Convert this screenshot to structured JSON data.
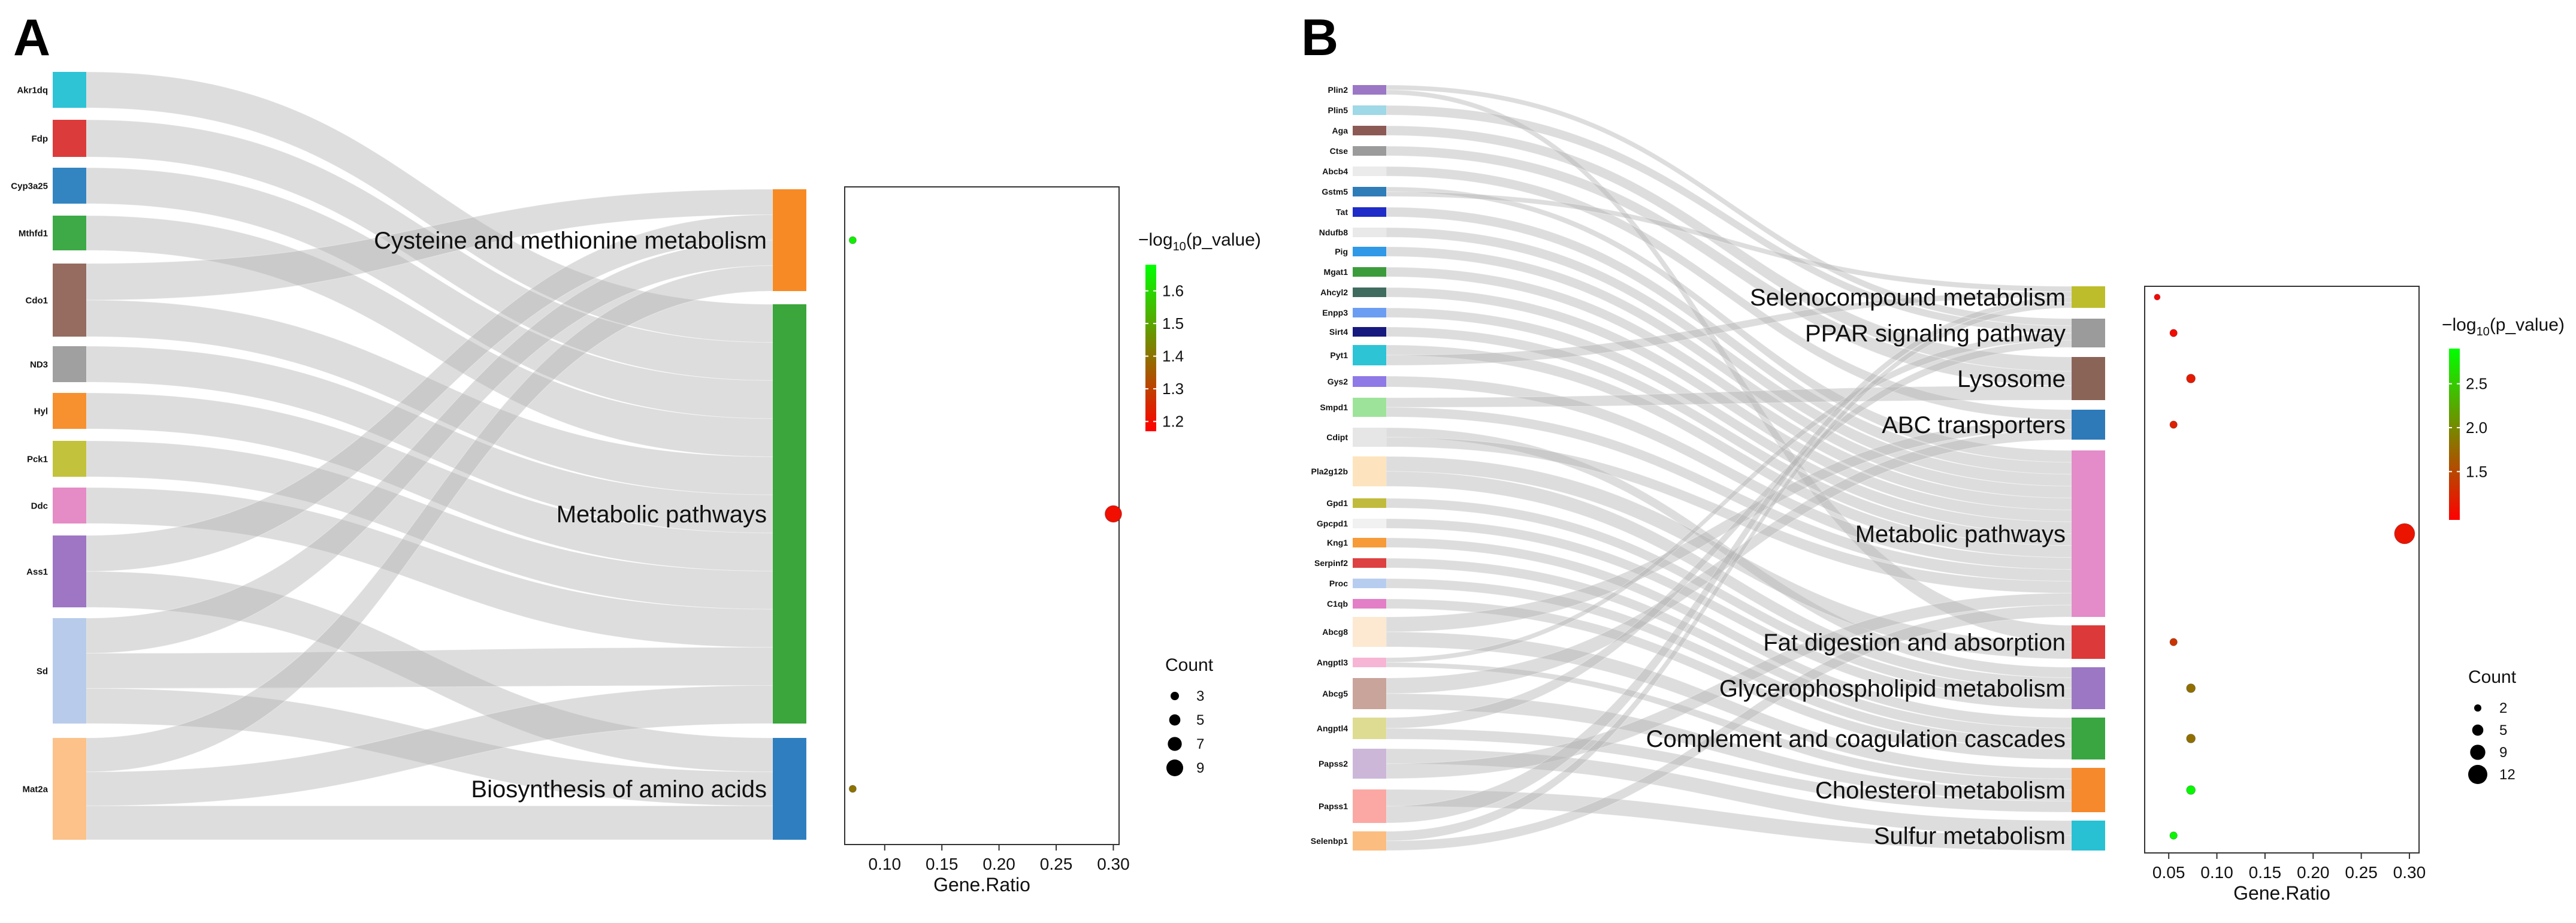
{
  "chart_data": [
    {
      "panel": "A",
      "type": "sankey+scatter",
      "genes": [
        {
          "name": "Akr1dq",
          "color": "#2fc3d6"
        },
        {
          "name": "Fdp",
          "color": "#dc3b3b"
        },
        {
          "name": "Cyp3a25",
          "color": "#3385c1"
        },
        {
          "name": "Mthfd1",
          "color": "#3daa47"
        },
        {
          "name": "Cdo1",
          "color": "#966b60"
        },
        {
          "name": "ND3",
          "color": "#a0a0a0"
        },
        {
          "name": "Hyl",
          "color": "#f7912f"
        },
        {
          "name": "Pck1",
          "color": "#c3c23c"
        },
        {
          "name": "Ddc",
          "color": "#e58bc6"
        },
        {
          "name": "Ass1",
          "color": "#9e76c3"
        },
        {
          "name": "Sd",
          "color": "#b8cbeb"
        },
        {
          "name": "Mat2a",
          "color": "#fcc28a"
        }
      ],
      "pathways": [
        {
          "name": "Cysteine and methionine metabolism",
          "color": "#f78a25"
        },
        {
          "name": "Metabolic pathways",
          "color": "#3aa63b"
        },
        {
          "name": "Biosynthesis of amino acids",
          "color": "#2f7fc0"
        }
      ],
      "points": [
        {
          "pathway": "Cysteine and methionine metabolism",
          "gene_ratio": 0.072,
          "neg_log10_p": 1.65,
          "count": 3
        },
        {
          "pathway": "Metabolic pathways",
          "gene_ratio": 0.3,
          "neg_log10_p": 1.2,
          "count": 9
        },
        {
          "pathway": "Biosynthesis of amino acids",
          "gene_ratio": 0.072,
          "neg_log10_p": 1.4,
          "count": 3
        }
      ],
      "xlabel": "Gene.Ratio",
      "x_ticks": [
        "0.10",
        "0.15",
        "0.20",
        "0.25",
        "0.30"
      ],
      "xlim": [
        0.065,
        0.305
      ],
      "color_legend": {
        "title_prefix": "−log",
        "title_sub": "10",
        "title_suffix": "(p_value)",
        "ticks": [
          "1.6",
          "1.5",
          "1.4",
          "1.3",
          "1.2"
        ],
        "range": [
          1.17,
          1.68
        ],
        "low_color": "#ff0000",
        "high_color": "#00ff00"
      },
      "size_legend": {
        "title": "Count",
        "values": [
          "3",
          "5",
          "7",
          "9"
        ]
      }
    },
    {
      "panel": "B",
      "type": "sankey+scatter",
      "genes": [
        {
          "name": "Plin2",
          "color": "#9b77c6"
        },
        {
          "name": "Plin5",
          "color": "#9fd8e6"
        },
        {
          "name": "Aga",
          "color": "#8c5a55"
        },
        {
          "name": "Ctse",
          "color": "#9b9b9b"
        },
        {
          "name": "Abcb4",
          "color": "#ebebeb"
        },
        {
          "name": "Gstm5",
          "color": "#2e7cb8"
        },
        {
          "name": "Tat",
          "color": "#1f2cc8"
        },
        {
          "name": "Ndufb8",
          "color": "#e9e9e9"
        },
        {
          "name": "Pig",
          "color": "#2f99e8"
        },
        {
          "name": "Mgat1",
          "color": "#3c9c3c"
        },
        {
          "name": "Ahcyl2",
          "color": "#3f6c5e"
        },
        {
          "name": "Enpp3",
          "color": "#6b9df3"
        },
        {
          "name": "Sirt4",
          "color": "#16197e"
        },
        {
          "name": "Pyt1",
          "color": "#2dc4d6"
        },
        {
          "name": "Gys2",
          "color": "#8f79e7"
        },
        {
          "name": "Smpd1",
          "color": "#9ee39a"
        },
        {
          "name": "Cdipt",
          "color": "#e6e6e6"
        },
        {
          "name": "Pla2g12b",
          "color": "#fde4bf"
        },
        {
          "name": "Gpd1",
          "color": "#c1bb3d"
        },
        {
          "name": "Gpcpd1",
          "color": "#f1f1f1"
        },
        {
          "name": "Kng1",
          "color": "#f79a38"
        },
        {
          "name": "Serpinf2",
          "color": "#dd4141"
        },
        {
          "name": "Proc",
          "color": "#b7cdf0"
        },
        {
          "name": "C1qb",
          "color": "#e37fc6"
        },
        {
          "name": "Abcg8",
          "color": "#fde8d1"
        },
        {
          "name": "Angptl3",
          "color": "#f7b5d5"
        },
        {
          "name": "Abcg5",
          "color": "#c9a49b"
        },
        {
          "name": "Angptl4",
          "color": "#dedc93"
        },
        {
          "name": "Papss2",
          "color": "#ccb7d9"
        },
        {
          "name": "Papss1",
          "color": "#fba8a4"
        },
        {
          "name": "Selenbp1",
          "color": "#fcbd80"
        }
      ],
      "pathways": [
        {
          "name": "Selenocompound metabolism",
          "color": "#bdbd2c"
        },
        {
          "name": "PPAR signaling pathway",
          "color": "#9b9b9b"
        },
        {
          "name": "Lysosome",
          "color": "#8b6458"
        },
        {
          "name": "ABC transporters",
          "color": "#2e7ab8"
        },
        {
          "name": "Metabolic pathways",
          "color": "#e48bc9"
        },
        {
          "name": "Fat digestion and absorption",
          "color": "#dc3a3a"
        },
        {
          "name": "Glycerophospholipid metabolism",
          "color": "#9c77c3"
        },
        {
          "name": "Complement and coagulation cascades",
          "color": "#3aa642"
        },
        {
          "name": "Cholesterol metabolism",
          "color": "#f6892b"
        },
        {
          "name": "Sulfur metabolism",
          "color": "#27c1d3"
        }
      ],
      "points": [
        {
          "pathway": "Selenocompound metabolism",
          "gene_ratio": 0.038,
          "neg_log10_p": 1.0,
          "count": 2
        },
        {
          "pathway": "PPAR signaling pathway",
          "gene_ratio": 0.055,
          "neg_log10_p": 1.05,
          "count": 3
        },
        {
          "pathway": "Lysosome",
          "gene_ratio": 0.073,
          "neg_log10_p": 1.15,
          "count": 4
        },
        {
          "pathway": "ABC transporters",
          "gene_ratio": 0.055,
          "neg_log10_p": 1.2,
          "count": 3
        },
        {
          "pathway": "Metabolic pathways",
          "gene_ratio": 0.295,
          "neg_log10_p": 1.1,
          "count": 12
        },
        {
          "pathway": "Fat digestion and absorption",
          "gene_ratio": 0.055,
          "neg_log10_p": 1.35,
          "count": 3
        },
        {
          "pathway": "Glycerophospholipid metabolism",
          "gene_ratio": 0.073,
          "neg_log10_p": 1.8,
          "count": 4
        },
        {
          "pathway": "Complement and coagulation cascades",
          "gene_ratio": 0.073,
          "neg_log10_p": 1.8,
          "count": 4
        },
        {
          "pathway": "Cholesterol metabolism",
          "gene_ratio": 0.073,
          "neg_log10_p": 2.85,
          "count": 4
        },
        {
          "pathway": "Sulfur metabolism",
          "gene_ratio": 0.055,
          "neg_log10_p": 2.85,
          "count": 3
        }
      ],
      "xlabel": "Gene.Ratio",
      "x_ticks": [
        "0.05",
        "0.10",
        "0.15",
        "0.20",
        "0.25",
        "0.30"
      ],
      "xlim": [
        0.025,
        0.31
      ],
      "color_legend": {
        "title_prefix": "−log",
        "title_sub": "10",
        "title_suffix": "(p_value)",
        "ticks": [
          "2.5",
          "2.0",
          "1.5"
        ],
        "range": [
          0.95,
          2.9
        ],
        "low_color": "#ff0000",
        "high_color": "#00ff00"
      },
      "size_legend": {
        "title": "Count",
        "values": [
          "2",
          "5",
          "9",
          "12"
        ]
      }
    }
  ],
  "panel_letters": [
    "A",
    "B"
  ]
}
